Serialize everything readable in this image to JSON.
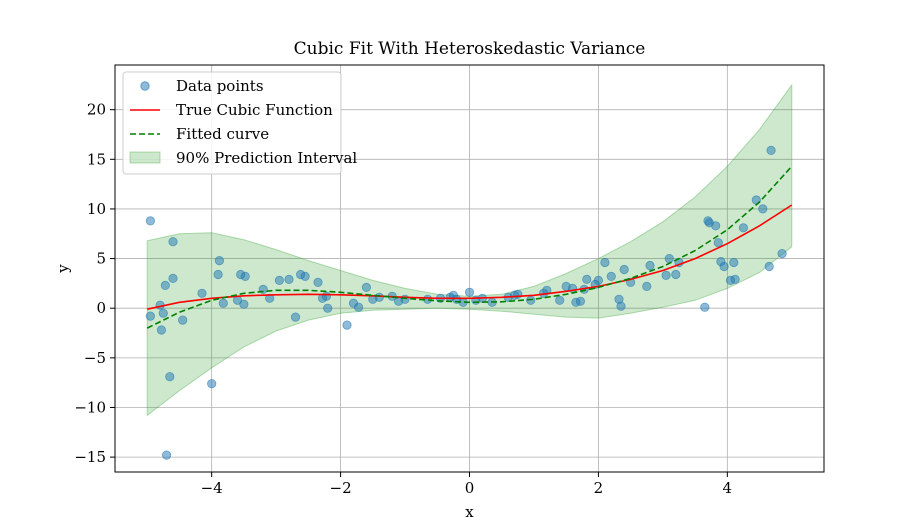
{
  "chart_data": {
    "type": "scatter",
    "title": "Cubic Fit With Heteroskedastic Variance",
    "xlabel": "x",
    "ylabel": "y",
    "xlim": [
      -5.5,
      5.5
    ],
    "ylim": [
      -16.5,
      24.5
    ],
    "xticks": [
      -4,
      -2,
      0,
      2,
      4
    ],
    "yticks": [
      -15,
      -10,
      -5,
      0,
      5,
      10,
      15,
      20
    ],
    "grid": true,
    "legend_placement": "top-left",
    "legend": [
      {
        "label": "Data points",
        "kind": "marker",
        "color": "#1f77b4"
      },
      {
        "label": "True Cubic Function",
        "kind": "line",
        "color": "#ff0000"
      },
      {
        "label": "Fitted curve",
        "kind": "dashed-line",
        "color": "#008000"
      },
      {
        "label": "90% Prediction Interval",
        "kind": "band",
        "color": "#2ca02c"
      }
    ],
    "series": [
      {
        "name": "Data points",
        "type": "scatter",
        "color": "#1f77b4",
        "points": [
          [
            -4.95,
            8.8
          ],
          [
            -4.95,
            -0.8
          ],
          [
            -4.8,
            0.3
          ],
          [
            -4.78,
            -2.2
          ],
          [
            -4.75,
            -0.5
          ],
          [
            -4.72,
            2.3
          ],
          [
            -4.7,
            -14.8
          ],
          [
            -4.65,
            -6.9
          ],
          [
            -4.6,
            3.0
          ],
          [
            -4.6,
            6.7
          ],
          [
            -4.45,
            -1.2
          ],
          [
            -4.15,
            1.5
          ],
          [
            -4.0,
            -7.6
          ],
          [
            -3.9,
            3.4
          ],
          [
            -3.88,
            4.8
          ],
          [
            -3.82,
            0.5
          ],
          [
            -3.6,
            0.8
          ],
          [
            -3.55,
            3.4
          ],
          [
            -3.5,
            0.4
          ],
          [
            -3.48,
            3.2
          ],
          [
            -3.2,
            1.9
          ],
          [
            -3.1,
            1.0
          ],
          [
            -2.95,
            2.8
          ],
          [
            -2.8,
            2.9
          ],
          [
            -2.7,
            -0.9
          ],
          [
            -2.62,
            3.4
          ],
          [
            -2.55,
            3.2
          ],
          [
            -2.35,
            2.6
          ],
          [
            -2.28,
            1.0
          ],
          [
            -2.22,
            1.2
          ],
          [
            -2.2,
            0.0
          ],
          [
            -1.9,
            -1.7
          ],
          [
            -1.8,
            0.5
          ],
          [
            -1.72,
            0.1
          ],
          [
            -1.6,
            2.1
          ],
          [
            -1.5,
            0.9
          ],
          [
            -1.4,
            1.1
          ],
          [
            -1.2,
            1.2
          ],
          [
            -1.1,
            0.7
          ],
          [
            -1.0,
            0.9
          ],
          [
            -0.65,
            0.9
          ],
          [
            -0.45,
            1.0
          ],
          [
            -0.3,
            1.1
          ],
          [
            -0.25,
            1.3
          ],
          [
            -0.2,
            0.9
          ],
          [
            -0.1,
            0.6
          ],
          [
            0.0,
            1.6
          ],
          [
            0.1,
            0.8
          ],
          [
            0.2,
            1.0
          ],
          [
            0.35,
            0.6
          ],
          [
            0.6,
            1.1
          ],
          [
            0.7,
            1.3
          ],
          [
            0.75,
            1.4
          ],
          [
            0.95,
            0.8
          ],
          [
            1.15,
            1.5
          ],
          [
            1.2,
            1.8
          ],
          [
            1.4,
            0.8
          ],
          [
            1.5,
            2.2
          ],
          [
            1.6,
            2.0
          ],
          [
            1.65,
            0.6
          ],
          [
            1.72,
            0.7
          ],
          [
            1.78,
            1.9
          ],
          [
            1.82,
            2.9
          ],
          [
            1.95,
            2.4
          ],
          [
            2.0,
            2.8
          ],
          [
            2.1,
            4.6
          ],
          [
            2.2,
            3.2
          ],
          [
            2.32,
            0.9
          ],
          [
            2.35,
            0.2
          ],
          [
            2.4,
            3.9
          ],
          [
            2.5,
            2.6
          ],
          [
            2.8,
            4.3
          ],
          [
            2.75,
            2.2
          ],
          [
            3.05,
            3.3
          ],
          [
            3.1,
            5.0
          ],
          [
            3.2,
            3.4
          ],
          [
            3.25,
            4.6
          ],
          [
            3.65,
            0.1
          ],
          [
            3.7,
            8.8
          ],
          [
            3.72,
            8.6
          ],
          [
            3.82,
            8.3
          ],
          [
            3.86,
            6.6
          ],
          [
            3.9,
            4.7
          ],
          [
            3.95,
            4.2
          ],
          [
            4.05,
            2.8
          ],
          [
            4.1,
            4.6
          ],
          [
            4.12,
            2.9
          ],
          [
            4.25,
            8.1
          ],
          [
            4.45,
            10.9
          ],
          [
            4.55,
            10.0
          ],
          [
            4.65,
            4.2
          ],
          [
            4.68,
            15.9
          ],
          [
            4.85,
            5.5
          ]
        ]
      },
      {
        "name": "True Cubic Function",
        "type": "line",
        "color": "#ff0000",
        "x": [
          -5.0,
          -4.5,
          -4.0,
          -3.5,
          -3.0,
          -2.5,
          -2.0,
          -1.5,
          -1.0,
          -0.5,
          0.0,
          0.5,
          1.0,
          1.5,
          2.0,
          2.5,
          3.0,
          3.5,
          4.0,
          4.5,
          5.0
        ],
        "y": [
          -0.1,
          0.6,
          1.0,
          1.25,
          1.35,
          1.4,
          1.35,
          1.25,
          1.1,
          1.0,
          1.0,
          1.1,
          1.3,
          1.7,
          2.2,
          2.9,
          3.8,
          5.0,
          6.5,
          8.3,
          10.4
        ]
      },
      {
        "name": "Fitted curve",
        "type": "line",
        "style": "dashed",
        "color": "#008000",
        "x": [
          -5.0,
          -4.5,
          -4.0,
          -3.5,
          -3.0,
          -2.5,
          -2.0,
          -1.5,
          -1.0,
          -0.5,
          0.0,
          0.5,
          1.0,
          1.5,
          2.0,
          2.5,
          3.0,
          3.5,
          4.0,
          4.5,
          5.0
        ],
        "y": [
          -2.0,
          -0.4,
          0.8,
          1.5,
          1.8,
          1.8,
          1.6,
          1.3,
          1.0,
          0.75,
          0.6,
          0.65,
          0.9,
          1.4,
          2.1,
          3.0,
          4.2,
          5.8,
          7.9,
          10.7,
          14.3
        ]
      },
      {
        "name": "90% Prediction Interval",
        "type": "band",
        "color": "#2ca02c",
        "x": [
          -5.0,
          -4.5,
          -4.0,
          -3.5,
          -3.0,
          -2.5,
          -2.0,
          -1.5,
          -1.0,
          -0.5,
          0.0,
          0.5,
          1.0,
          1.5,
          2.0,
          2.5,
          3.0,
          3.5,
          4.0,
          4.5,
          5.0
        ],
        "upper": [
          6.8,
          7.5,
          7.6,
          6.9,
          5.9,
          4.8,
          3.8,
          2.8,
          2.0,
          1.4,
          1.2,
          1.4,
          2.2,
          3.5,
          5.0,
          6.7,
          8.7,
          11.2,
          14.3,
          18.0,
          22.5
        ],
        "lower": [
          -10.8,
          -8.3,
          -6.0,
          -3.9,
          -2.3,
          -1.2,
          -0.5,
          -0.2,
          -0.1,
          0.0,
          -0.1,
          -0.3,
          -0.6,
          -0.9,
          -1.0,
          -0.5,
          0.1,
          0.8,
          2.0,
          3.6,
          6.2
        ]
      }
    ]
  }
}
